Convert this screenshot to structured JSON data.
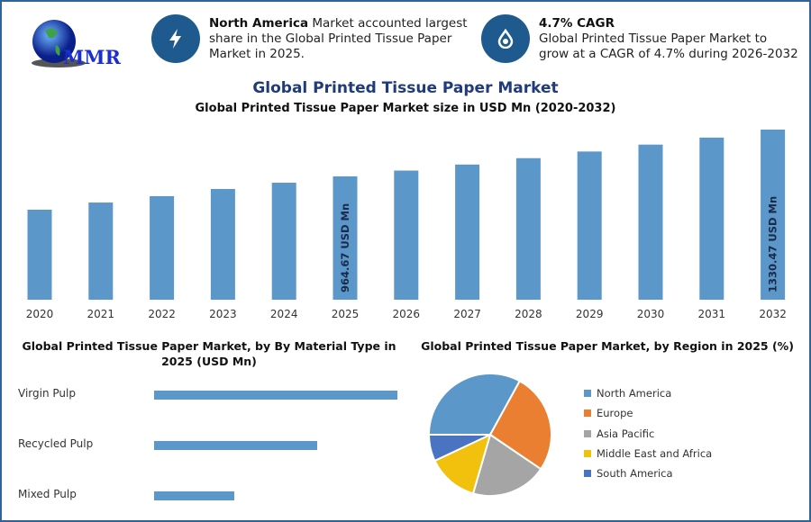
{
  "logo": {
    "text": "MMR"
  },
  "info_cards": [
    {
      "icon": "lightning-icon",
      "bold": "North America",
      "text": " Market accounted largest share in the Global Printed Tissue Paper Market in 2025."
    },
    {
      "icon": "flame-drop-icon",
      "bold": "4.7% CAGR",
      "text": "Global Printed Tissue Paper Market to grow at a CAGR of 4.7% during 2026-2032"
    }
  ],
  "colors": {
    "frame": "#2e6496",
    "bar": "#5b97c9",
    "title": "#1f3b7a",
    "icon_bg": "#1f5a8e"
  },
  "chart_data": [
    {
      "type": "bar",
      "title": "Global Printed Tissue Paper Market",
      "subtitle": "Global Printed Tissue Paper Market size in USD Mn (2020-2032)",
      "categories": [
        "2020",
        "2021",
        "2022",
        "2023",
        "2024",
        "2025",
        "2026",
        "2027",
        "2028",
        "2029",
        "2030",
        "2031",
        "2032"
      ],
      "values": [
        704,
        760,
        810,
        866,
        915,
        964.67,
        1010,
        1057,
        1107,
        1159,
        1213,
        1268,
        1330.47
      ],
      "data_labels": {
        "2025": "964.67 USD Mn",
        "2032": "1330.47 USD Mn"
      },
      "ylim": [
        0,
        1330.47
      ],
      "grid": false
    },
    {
      "type": "bar",
      "orientation": "horizontal",
      "title": "Global Printed Tissue Paper Market, by By Material Type in 2025 (USD Mn)",
      "categories": [
        "Virgin Pulp",
        "Recycled Pulp",
        "Mixed Pulp"
      ],
      "values": [
        1.0,
        0.67,
        0.33
      ],
      "grid": false
    },
    {
      "type": "pie",
      "title": "Global Printed Tissue Paper Market, by Region in 2025 (%)",
      "categories": [
        "North America",
        "Europe",
        "Asia Pacific",
        "Middle East and Africa",
        "South America"
      ],
      "values": [
        33,
        26.5,
        20,
        13.5,
        7
      ],
      "colors": [
        "#5b97c9",
        "#ea7f32",
        "#a5a5a5",
        "#f2c10e",
        "#4a73c1"
      ],
      "legend": "right"
    }
  ]
}
